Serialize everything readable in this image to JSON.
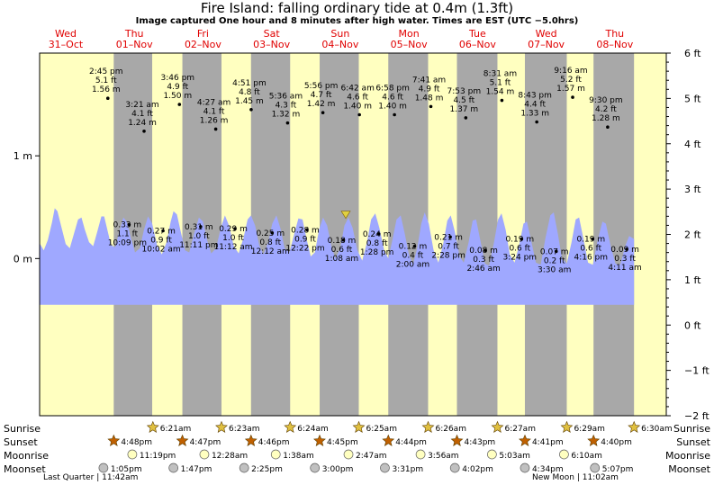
{
  "header": {
    "title": "Fire Island: falling  ordinary tide at 0.4m (1.3ft)",
    "subtitle": "Image captured One hour and 8 minutes after high water. Times are EST (UTC −5.0hrs)"
  },
  "chart_data": {
    "type": "area",
    "x_unit": "days from midnight 31-Oct (EST)",
    "xlim": [
      -0.38,
      8.75
    ],
    "ylim": [
      -1.53,
      2.0
    ],
    "ylim_ft": [
      -2,
      6
    ],
    "current_level_m": 0.4,
    "now_x": 4.08,
    "days": [
      {
        "dow": "Wed",
        "date": "31–Oct"
      },
      {
        "dow": "Thu",
        "date": "01–Nov"
      },
      {
        "dow": "Fri",
        "date": "02–Nov"
      },
      {
        "dow": "Sat",
        "date": "03–Nov"
      },
      {
        "dow": "Sun",
        "date": "04–Nov"
      },
      {
        "dow": "Mon",
        "date": "05–Nov"
      },
      {
        "dow": "Tue",
        "date": "06–Nov"
      },
      {
        "dow": "Wed",
        "date": "07–Nov"
      },
      {
        "dow": "Thu",
        "date": "08–Nov"
      }
    ],
    "y_ticks_m": [
      {
        "v": 1,
        "label": "1 m"
      },
      {
        "v": 0,
        "label": "0 m"
      }
    ],
    "y_ticks_ft": [
      {
        "v": 6,
        "label": "6 ft"
      },
      {
        "v": 5,
        "label": "5 ft"
      },
      {
        "v": 4,
        "label": "4 ft"
      },
      {
        "v": 3,
        "label": "3 ft"
      },
      {
        "v": 2,
        "label": "2 ft"
      },
      {
        "v": 1,
        "label": "1 ft"
      },
      {
        "v": 0,
        "label": "0 ft"
      },
      {
        "v": -1,
        "label": "−1 ft"
      },
      {
        "v": -2,
        "label": "−2 ft"
      }
    ],
    "nights": [
      {
        "start": 0.7,
        "end": 1.26
      },
      {
        "start": 1.7,
        "end": 2.27
      },
      {
        "start": 2.7,
        "end": 3.27
      },
      {
        "start": 3.7,
        "end": 4.27
      },
      {
        "start": 4.7,
        "end": 5.28
      },
      {
        "start": 5.7,
        "end": 6.29
      },
      {
        "start": 6.69,
        "end": 7.3
      },
      {
        "start": 7.69,
        "end": 8.28
      }
    ],
    "tides": [
      {
        "x": 0.614,
        "hl": "high",
        "m": 1.56,
        "time": "2:45 pm",
        "ft": "5.1 ft",
        "mval": "1.56 m"
      },
      {
        "x": 1.142,
        "hl": "high",
        "m": 1.24,
        "time": "3:21 am",
        "ft": "4.1 ft",
        "mval": "1.24 m"
      },
      {
        "x": 1.657,
        "hl": "high",
        "m": 1.5,
        "time": "3:46 pm",
        "ft": "4.9 ft",
        "mval": "1.50 m"
      },
      {
        "x": 2.186,
        "hl": "high",
        "m": 1.26,
        "time": "4:27 am",
        "ft": "4.1 ft",
        "mval": "1.26 m"
      },
      {
        "x": 2.702,
        "hl": "high",
        "m": 1.45,
        "time": "4:51 pm",
        "ft": "4.8 ft",
        "mval": "1.45 m"
      },
      {
        "x": 3.233,
        "hl": "high",
        "m": 1.32,
        "time": "5:36 am",
        "ft": "4.3 ft",
        "mval": "1.32 m"
      },
      {
        "x": 3.747,
        "hl": "high",
        "m": 1.42,
        "time": "5:56 pm",
        "ft": "4.7 ft",
        "mval": "1.42 m"
      },
      {
        "x": 4.279,
        "hl": "high",
        "m": 1.4,
        "time": "6:42 am",
        "ft": "4.6 ft",
        "mval": "1.40 m"
      },
      {
        "x": 4.79,
        "hl": "high",
        "m": 1.4,
        "time": "6:58 pm",
        "ft": "4.6 ft",
        "mval": "1.40 m"
      },
      {
        "x": 5.32,
        "hl": "high",
        "m": 1.48,
        "time": "7:41 am",
        "ft": "4.9 ft",
        "mval": "1.48 m"
      },
      {
        "x": 5.829,
        "hl": "high",
        "m": 1.37,
        "time": "7:53 pm",
        "ft": "4.5 ft",
        "mval": "1.37 m"
      },
      {
        "x": 6.355,
        "hl": "high",
        "m": 1.54,
        "time": "8:31 am",
        "ft": "5.1 ft",
        "mval": "1.54 m"
      },
      {
        "x": 6.863,
        "hl": "high",
        "m": 1.33,
        "time": "8:43 pm",
        "ft": "4.4 ft",
        "mval": "1.33 m"
      },
      {
        "x": 7.386,
        "hl": "high",
        "m": 1.57,
        "time": "9:16 am",
        "ft": "5.2 ft",
        "mval": "1.57 m"
      },
      {
        "x": 7.896,
        "hl": "high",
        "m": 1.28,
        "time": "9:30 pm",
        "ft": "4.2 ft",
        "mval": "1.28 m"
      },
      {
        "x": 0.923,
        "hl": "low",
        "m": 0.33,
        "time": "10:09 pm",
        "ft": "1.1 ft",
        "mval": "0.33 m"
      },
      {
        "x": 1.418,
        "hl": "low",
        "m": 0.27,
        "time": "10:02 am",
        "ft": "0.9 ft",
        "mval": "0.27 m"
      },
      {
        "x": 1.966,
        "hl": "low",
        "m": 0.31,
        "time": "11:11 pm",
        "ft": "1.0 ft",
        "mval": "0.31 m"
      },
      {
        "x": 2.467,
        "hl": "low",
        "m": 0.29,
        "time": "11:12 am",
        "ft": "1.0 ft",
        "mval": "0.29 m"
      },
      {
        "x": 3.008,
        "hl": "low",
        "m": 0.25,
        "time": "12:12 am",
        "ft": "0.8 ft",
        "mval": "0.25 m"
      },
      {
        "x": 3.516,
        "hl": "low",
        "m": 0.28,
        "time": "12:22 pm",
        "ft": "0.9 ft",
        "mval": "0.28 m"
      },
      {
        "x": 4.047,
        "hl": "low",
        "m": 0.18,
        "time": "1:08 am",
        "ft": "0.6 ft",
        "mval": "0.18 m"
      },
      {
        "x": 4.561,
        "hl": "low",
        "m": 0.24,
        "time": "1:28 pm",
        "ft": "0.8 ft",
        "mval": "0.24 m"
      },
      {
        "x": 5.083,
        "hl": "low",
        "m": 0.12,
        "time": "2:00 am",
        "ft": "0.4 ft",
        "mval": "0.12 m"
      },
      {
        "x": 5.603,
        "hl": "low",
        "m": 0.21,
        "time": "2:28 pm",
        "ft": "0.7 ft",
        "mval": "0.21 m"
      },
      {
        "x": 6.115,
        "hl": "low",
        "m": 0.08,
        "time": "2:46 am",
        "ft": "0.3 ft",
        "mval": "0.08 m"
      },
      {
        "x": 6.642,
        "hl": "low",
        "m": 0.19,
        "time": "3:24 pm",
        "ft": "0.6 ft",
        "mval": "0.19 m"
      },
      {
        "x": 7.146,
        "hl": "low",
        "m": 0.07,
        "time": "3:30 am",
        "ft": "0.2 ft",
        "mval": "0.07 m"
      },
      {
        "x": 7.678,
        "hl": "low",
        "m": 0.19,
        "time": "4:16 pm",
        "ft": "0.6 ft",
        "mval": "0.19 m"
      },
      {
        "x": 8.174,
        "hl": "low",
        "m": 0.09,
        "time": "4:11 am",
        "ft": "0.3 ft",
        "mval": "0.09 m"
      }
    ],
    "curve": [
      [
        -0.38,
        0.15
      ],
      [
        -0.32,
        0.08
      ],
      [
        -0.26,
        0.18
      ],
      [
        -0.2,
        0.35
      ],
      [
        -0.16,
        0.49
      ],
      [
        -0.12,
        0.46
      ],
      [
        -0.06,
        0.3
      ],
      [
        0.0,
        0.14
      ],
      [
        0.06,
        0.1
      ],
      [
        0.12,
        0.24
      ],
      [
        0.18,
        0.38
      ],
      [
        0.23,
        0.4
      ],
      [
        0.28,
        0.28
      ],
      [
        0.34,
        0.16
      ],
      [
        0.4,
        0.12
      ],
      [
        0.46,
        0.26
      ],
      [
        0.52,
        0.41
      ],
      [
        0.56,
        0.41
      ],
      [
        0.61,
        0.27
      ],
      [
        0.66,
        0.13
      ],
      [
        0.72,
        0.11
      ],
      [
        0.78,
        0.26
      ],
      [
        0.84,
        0.4
      ],
      [
        0.89,
        0.36
      ],
      [
        0.95,
        0.2
      ],
      [
        1.01,
        0.06
      ],
      [
        1.08,
        0.1
      ],
      [
        1.14,
        0.28
      ],
      [
        1.2,
        0.41
      ],
      [
        1.26,
        0.34
      ],
      [
        1.33,
        0.13
      ],
      [
        1.4,
        0.04
      ],
      [
        1.47,
        0.16
      ],
      [
        1.53,
        0.36
      ],
      [
        1.57,
        0.46
      ],
      [
        1.62,
        0.43
      ],
      [
        1.68,
        0.25
      ],
      [
        1.74,
        0.08
      ],
      [
        1.8,
        0.06
      ],
      [
        1.87,
        0.24
      ],
      [
        1.94,
        0.4
      ],
      [
        2.0,
        0.36
      ],
      [
        2.06,
        0.18
      ],
      [
        2.12,
        0.05
      ],
      [
        2.19,
        0.1
      ],
      [
        2.26,
        0.3
      ],
      [
        2.32,
        0.42
      ],
      [
        2.38,
        0.32
      ],
      [
        2.45,
        0.12
      ],
      [
        2.52,
        0.05
      ],
      [
        2.59,
        0.2
      ],
      [
        2.65,
        0.38
      ],
      [
        2.7,
        0.42
      ],
      [
        2.76,
        0.32
      ],
      [
        2.82,
        0.13
      ],
      [
        2.88,
        0.04
      ],
      [
        2.95,
        0.16
      ],
      [
        3.01,
        0.34
      ],
      [
        3.07,
        0.42
      ],
      [
        3.13,
        0.29
      ],
      [
        3.19,
        0.1
      ],
      [
        3.26,
        0.06
      ],
      [
        3.33,
        0.24
      ],
      [
        3.39,
        0.39
      ],
      [
        3.45,
        0.38
      ],
      [
        3.51,
        0.19
      ],
      [
        3.57,
        0.02
      ],
      [
        3.63,
        0.06
      ],
      [
        3.69,
        0.28
      ],
      [
        3.75,
        0.4
      ],
      [
        3.81,
        0.32
      ],
      [
        3.87,
        0.12
      ],
      [
        3.93,
        0.0
      ],
      [
        4.0,
        0.1
      ],
      [
        4.06,
        0.32
      ],
      [
        4.12,
        0.4
      ],
      [
        4.18,
        0.3
      ],
      [
        4.25,
        0.08
      ],
      [
        4.32,
        -0.02
      ],
      [
        4.39,
        0.16
      ],
      [
        4.45,
        0.38
      ],
      [
        4.51,
        0.44
      ],
      [
        4.57,
        0.3
      ],
      [
        4.64,
        0.08
      ],
      [
        4.7,
        0.0
      ],
      [
        4.76,
        0.18
      ],
      [
        4.82,
        0.38
      ],
      [
        4.88,
        0.42
      ],
      [
        4.94,
        0.24
      ],
      [
        5.0,
        0.04
      ],
      [
        5.06,
        -0.06
      ],
      [
        5.12,
        0.1
      ],
      [
        5.18,
        0.34
      ],
      [
        5.23,
        0.45
      ],
      [
        5.29,
        0.34
      ],
      [
        5.36,
        0.08
      ],
      [
        5.43,
        -0.04
      ],
      [
        5.5,
        0.14
      ],
      [
        5.56,
        0.37
      ],
      [
        5.61,
        0.42
      ],
      [
        5.67,
        0.26
      ],
      [
        5.74,
        0.02
      ],
      [
        5.8,
        -0.04
      ],
      [
        5.87,
        0.16
      ],
      [
        5.93,
        0.37
      ],
      [
        5.98,
        0.38
      ],
      [
        6.04,
        0.18
      ],
      [
        6.11,
        -0.05
      ],
      [
        6.17,
        -0.07
      ],
      [
        6.24,
        0.16
      ],
      [
        6.3,
        0.38
      ],
      [
        6.35,
        0.44
      ],
      [
        6.41,
        0.28
      ],
      [
        6.47,
        0.04
      ],
      [
        6.54,
        -0.04
      ],
      [
        6.61,
        0.14
      ],
      [
        6.67,
        0.34
      ],
      [
        6.72,
        0.36
      ],
      [
        6.78,
        0.18
      ],
      [
        6.85,
        -0.04
      ],
      [
        6.92,
        -0.06
      ],
      [
        6.99,
        0.2
      ],
      [
        7.06,
        0.42
      ],
      [
        7.11,
        0.45
      ],
      [
        7.17,
        0.24
      ],
      [
        7.23,
        0.0
      ],
      [
        7.3,
        -0.05
      ],
      [
        7.37,
        0.16
      ],
      [
        7.43,
        0.38
      ],
      [
        7.48,
        0.4
      ],
      [
        7.54,
        0.2
      ],
      [
        7.61,
        -0.04
      ],
      [
        7.68,
        -0.06
      ],
      [
        7.75,
        0.18
      ],
      [
        7.82,
        0.36
      ],
      [
        7.87,
        0.34
      ],
      [
        7.94,
        0.12
      ],
      [
        8.01,
        -0.05
      ],
      [
        8.08,
        -0.06
      ],
      [
        8.15,
        0.12
      ],
      [
        8.21,
        0.22
      ],
      [
        8.28,
        0.19
      ]
    ]
  },
  "bottom_rows": {
    "labels": [
      "Sunrise",
      "Sunset",
      "Moonrise",
      "Moonset"
    ],
    "sunrise": [
      {
        "x": 1.27,
        "label": "6:21am"
      },
      {
        "x": 2.27,
        "label": "6:23am"
      },
      {
        "x": 3.27,
        "label": "6:24am"
      },
      {
        "x": 4.27,
        "label": "6:25am"
      },
      {
        "x": 5.28,
        "label": "6:26am"
      },
      {
        "x": 6.29,
        "label": "6:27am"
      },
      {
        "x": 7.3,
        "label": "6:29am"
      },
      {
        "x": 8.28,
        "label": "6:30am"
      }
    ],
    "sunset": [
      {
        "x": 0.7,
        "label": "4:48pm"
      },
      {
        "x": 1.7,
        "label": "4:47pm"
      },
      {
        "x": 2.7,
        "label": "4:46pm"
      },
      {
        "x": 3.7,
        "label": "4:45pm"
      },
      {
        "x": 4.7,
        "label": "4:44pm"
      },
      {
        "x": 5.7,
        "label": "4:43pm"
      },
      {
        "x": 6.69,
        "label": "4:41pm"
      },
      {
        "x": 7.69,
        "label": "4:40pm"
      }
    ],
    "moonrise": [
      {
        "x": 0.97,
        "label": "11:19pm"
      },
      {
        "x": 2.02,
        "label": "12:28am"
      },
      {
        "x": 3.06,
        "label": "1:38am"
      },
      {
        "x": 4.12,
        "label": "2:47am"
      },
      {
        "x": 5.17,
        "label": "3:56am"
      },
      {
        "x": 6.21,
        "label": "5:03am"
      },
      {
        "x": 7.26,
        "label": "6:10am"
      }
    ],
    "moonset": [
      {
        "x": 0.55,
        "label": "1:05pm"
      },
      {
        "x": 1.57,
        "label": "1:47pm"
      },
      {
        "x": 2.6,
        "label": "2:25pm"
      },
      {
        "x": 3.63,
        "label": "3:00pm"
      },
      {
        "x": 4.65,
        "label": "3:31pm"
      },
      {
        "x": 5.67,
        "label": "4:02pm"
      },
      {
        "x": 6.69,
        "label": "4:34pm"
      },
      {
        "x": 7.71,
        "label": "5:07pm"
      }
    ]
  },
  "footer": {
    "left": "Last Quarter | 11:42am",
    "right": "New Moon | 11:02am"
  },
  "colors": {
    "day": "#ffffc0",
    "night": "#a8a8a8",
    "water": "#9fa8ff",
    "border": "#000000",
    "sunrise_star": "#e0c040",
    "sunset_star": "#c06000",
    "moonrise": "#ffffc0",
    "moonset": "#c0c0c0"
  }
}
